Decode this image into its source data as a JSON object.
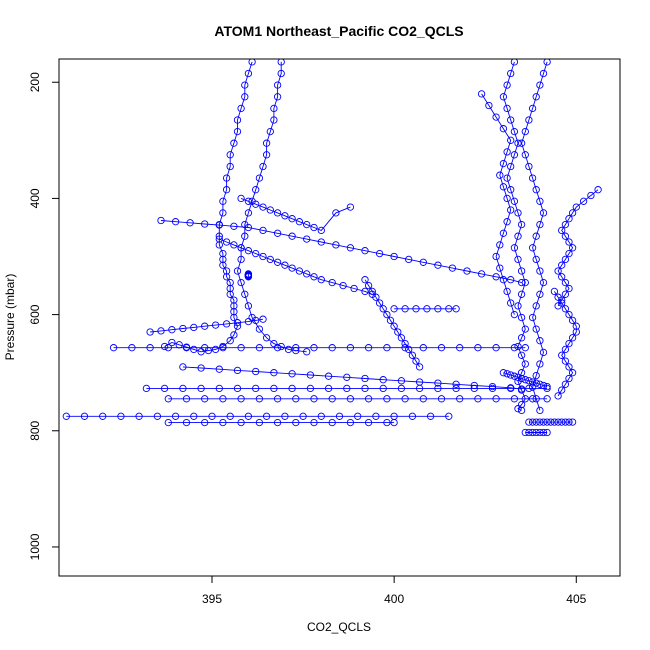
{
  "chart_data": {
    "type": "scatter",
    "title": "ATOM1 Northeast_Pacific CO2_QCLS",
    "xlabel": "CO2_QCLS",
    "ylabel": "Pressure (mbar)",
    "xlim": [
      390.8,
      406.2
    ],
    "ylim": [
      1050,
      160
    ],
    "y_reversed": true,
    "x_ticks": [
      395,
      400,
      405
    ],
    "y_ticks": [
      200,
      400,
      600,
      800,
      1000
    ],
    "x_tick_labels": [
      "395",
      "400",
      "405"
    ],
    "y_tick_labels": [
      "200",
      "400",
      "600",
      "800",
      "1000"
    ],
    "grid": false,
    "legend": "none",
    "marker": "open-circle",
    "connect_points": true,
    "color": "#0000ff",
    "series": [
      {
        "x": [
          396.1,
          396.0,
          395.9,
          395.9,
          395.8,
          395.7,
          395.7,
          395.6,
          395.5,
          395.5,
          395.4,
          395.4,
          395.3,
          395.3,
          395.2,
          395.2,
          395.2,
          395.3,
          395.3,
          395.3,
          395.4,
          395.4,
          395.5,
          395.5,
          395.5,
          395.6,
          395.6,
          395.6,
          395.6,
          395.7,
          395.6,
          395.5,
          395.3,
          395.1,
          394.9,
          394.7,
          394.5,
          394.3,
          394.1,
          393.9,
          393.7
        ],
        "y": [
          165,
          185,
          205,
          225,
          245,
          265,
          285,
          305,
          325,
          345,
          365,
          385,
          405,
          425,
          445,
          465,
          480,
          495,
          505,
          515,
          525,
          535,
          545,
          555,
          565,
          575,
          585,
          595,
          605,
          620,
          635,
          645,
          655,
          660,
          662,
          664,
          660,
          656,
          652,
          648,
          655
        ]
      },
      {
        "x": [
          396.9,
          396.9,
          396.8,
          396.8,
          396.7,
          396.7,
          396.6,
          396.5,
          396.5,
          396.4,
          396.3,
          396.2,
          396.1,
          396.0,
          395.9,
          395.9,
          395.8,
          395.8,
          395.7,
          395.8,
          395.9,
          396.0,
          396.1,
          396.3,
          396.5,
          396.7,
          396.9,
          397.1,
          397.3,
          397.6
        ],
        "y": [
          165,
          185,
          205,
          225,
          245,
          265,
          285,
          305,
          325,
          345,
          365,
          385,
          405,
          425,
          445,
          465,
          485,
          505,
          525,
          545,
          565,
          585,
          605,
          625,
          640,
          650,
          655,
          660,
          662,
          664
        ]
      },
      {
        "x": [
          393.6,
          394.0,
          394.4,
          394.8,
          395.2,
          395.6,
          396.0,
          396.4,
          396.8,
          397.2,
          397.6,
          398.0,
          398.4,
          398.8,
          399.2,
          399.6,
          400.0,
          400.4,
          400.8,
          401.2,
          401.6,
          402.0,
          402.4,
          402.8,
          403.2,
          403.5
        ],
        "y": [
          438,
          440,
          442,
          444,
          446,
          448,
          450,
          455,
          460,
          465,
          470,
          475,
          480,
          485,
          490,
          495,
          500,
          505,
          510,
          515,
          520,
          525,
          530,
          535,
          540,
          545
        ]
      },
      {
        "x": [
          392.3,
          392.8,
          393.3,
          393.8,
          394.3,
          394.8,
          395.3,
          395.8,
          396.3,
          396.8,
          397.3,
          397.8,
          398.3,
          398.8,
          399.3,
          399.8,
          400.3,
          400.8,
          401.3,
          401.8,
          402.3,
          402.8,
          403.3,
          403.6
        ],
        "y": [
          657,
          657,
          657,
          657,
          657,
          657,
          657,
          657,
          657,
          657,
          657,
          657,
          657,
          657,
          657,
          657,
          657,
          657,
          657,
          657,
          657,
          657,
          657,
          657
        ]
      },
      {
        "x": [
          393.2,
          393.7,
          394.2,
          394.7,
          395.2,
          395.7,
          396.2,
          396.7,
          397.2,
          397.7,
          398.2,
          398.7,
          399.2,
          399.7,
          400.2,
          400.7,
          401.2,
          401.7,
          402.2,
          402.7,
          403.2,
          403.7,
          404.2
        ],
        "y": [
          727,
          727,
          727,
          727,
          727,
          727,
          727,
          727,
          727,
          727,
          727,
          727,
          727,
          727,
          727,
          727,
          727,
          727,
          727,
          727,
          727,
          727,
          727
        ]
      },
      {
        "x": [
          393.8,
          394.3,
          394.8,
          395.3,
          395.8,
          396.3,
          396.8,
          397.3,
          397.8,
          398.3,
          398.8,
          399.3,
          399.8,
          400.3,
          400.8,
          401.3,
          401.8,
          402.3,
          402.8,
          403.3,
          403.8,
          404.2
        ],
        "y": [
          745,
          745,
          745,
          745,
          745,
          745,
          745,
          745,
          745,
          745,
          745,
          745,
          745,
          745,
          745,
          745,
          745,
          745,
          745,
          745,
          745,
          745
        ]
      },
      {
        "x": [
          391.0,
          391.5,
          392.0,
          392.5,
          393.0,
          393.5,
          394.0,
          394.5,
          395.0,
          395.5,
          396.0,
          396.5,
          397.0,
          397.5,
          398.0,
          398.5,
          399.0,
          399.5,
          400.0,
          400.5,
          401.0,
          401.5
        ],
        "y": [
          775,
          775,
          775,
          775,
          775,
          775,
          775,
          775,
          775,
          775,
          775,
          775,
          775,
          775,
          775,
          775,
          775,
          775,
          775,
          775,
          775,
          775
        ]
      },
      {
        "x": [
          393.8,
          394.3,
          394.8,
          395.3,
          395.8,
          396.3,
          396.8,
          397.3,
          397.8,
          398.3,
          398.8,
          399.3,
          399.8,
          400.0
        ],
        "y": [
          786,
          786,
          786,
          786,
          786,
          786,
          786,
          786,
          786,
          786,
          786,
          786,
          786,
          786
        ]
      },
      {
        "x": [
          394.2,
          394.7,
          395.2,
          395.7,
          396.2,
          396.7,
          397.2,
          397.7,
          398.2,
          398.7,
          399.2,
          399.7,
          400.2,
          400.7,
          401.2,
          401.7,
          402.2,
          402.7,
          403.2,
          403.5
        ],
        "y": [
          690,
          692,
          694,
          696,
          698,
          700,
          702,
          704,
          706,
          708,
          710,
          712,
          714,
          716,
          718,
          720,
          722,
          724,
          726,
          728
        ]
      },
      {
        "x": [
          400.0,
          400.3,
          400.6,
          400.9,
          401.2,
          401.5,
          401.7
        ],
        "y": [
          590,
          590,
          590,
          590,
          590,
          590,
          590
        ]
      },
      {
        "x": [
          399.2,
          399.3,
          399.4,
          399.5,
          399.6,
          399.7,
          399.8,
          399.9,
          400.0,
          400.1,
          400.2,
          400.3,
          400.4,
          400.5,
          400.6,
          400.7
        ],
        "y": [
          540,
          550,
          560,
          570,
          580,
          590,
          600,
          610,
          620,
          630,
          640,
          650,
          660,
          670,
          680,
          690
        ]
      },
      {
        "x": [
          395.2,
          395.4,
          395.6,
          395.8,
          396.0,
          396.2,
          396.4,
          396.6,
          396.8,
          397.0,
          397.2,
          397.4,
          397.6,
          397.8,
          398.0,
          398.3,
          398.6,
          398.9,
          399.2,
          399.4
        ],
        "y": [
          470,
          475,
          480,
          485,
          490,
          495,
          500,
          505,
          510,
          515,
          520,
          525,
          530,
          535,
          540,
          545,
          550,
          555,
          560,
          565
        ]
      },
      {
        "x": [
          393.3,
          393.6,
          393.9,
          394.2,
          394.5,
          394.8,
          395.1,
          395.4,
          395.7,
          396.0,
          396.2,
          396.4
        ],
        "y": [
          630,
          628,
          626,
          624,
          622,
          620,
          618,
          616,
          614,
          612,
          610,
          608
        ]
      },
      {
        "x": [
          395.8,
          396.0,
          396.2,
          396.4,
          396.6,
          396.8,
          397.0,
          397.2,
          397.4,
          397.6,
          397.8,
          398.0,
          398.4,
          398.8
        ],
        "y": [
          400,
          405,
          410,
          415,
          420,
          425,
          430,
          435,
          440,
          445,
          450,
          455,
          425,
          415
        ]
      },
      {
        "x": [
          396.0,
          396.0,
          396.0,
          396.0,
          396.0,
          396.0,
          396.0,
          396.0,
          396.0,
          396.0
        ],
        "y": [
          530,
          531,
          532,
          533,
          534,
          535,
          534,
          533,
          532,
          531
        ]
      },
      {
        "x": [
          403.3,
          403.2,
          403.1,
          403.0,
          403.1,
          403.2,
          403.3,
          403.4,
          403.3,
          403.2,
          403.1,
          403.2,
          403.3,
          403.4,
          403.5,
          403.4,
          403.3,
          403.4,
          403.5,
          403.6,
          403.5,
          403.4,
          403.5,
          403.6,
          403.5,
          403.4,
          403.5,
          403.6,
          403.5,
          403.4,
          403.5,
          403.6,
          403.5,
          403.4,
          403.5
        ],
        "y": [
          165,
          185,
          205,
          225,
          245,
          265,
          285,
          305,
          325,
          345,
          365,
          385,
          405,
          425,
          445,
          465,
          485,
          505,
          525,
          545,
          565,
          585,
          605,
          625,
          640,
          655,
          670,
          685,
          700,
          715,
          730,
          745,
          755,
          762,
          765
        ]
      },
      {
        "x": [
          404.2,
          404.1,
          404.0,
          403.9,
          403.8,
          403.7,
          403.6,
          403.5,
          403.6,
          403.7,
          403.8,
          403.9,
          404.0,
          404.1,
          404.0,
          403.9,
          403.8,
          403.9,
          404.0,
          404.1,
          404.0,
          403.9,
          403.8,
          403.9,
          404.0,
          404.1,
          404.0,
          403.9,
          403.8,
          403.9,
          404.0
        ],
        "y": [
          165,
          185,
          205,
          225,
          245,
          265,
          285,
          305,
          325,
          345,
          365,
          385,
          405,
          425,
          445,
          465,
          485,
          505,
          525,
          545,
          565,
          585,
          605,
          625,
          645,
          665,
          685,
          705,
          725,
          745,
          765
        ]
      },
      {
        "x": [
          402.4,
          402.6,
          402.8,
          403.0,
          403.2,
          403.1,
          403.0,
          402.9,
          403.0,
          403.1,
          403.2,
          403.1,
          403.0,
          402.9,
          402.8,
          402.9,
          403.0,
          403.1,
          403.2,
          403.3
        ],
        "y": [
          220,
          240,
          260,
          280,
          300,
          320,
          340,
          360,
          380,
          400,
          420,
          440,
          460,
          480,
          500,
          520,
          540,
          560,
          580,
          600
        ]
      },
      {
        "x": [
          405.6,
          405.4,
          405.2,
          405.0,
          404.9,
          404.8,
          404.7,
          404.6,
          404.7,
          404.8,
          404.9,
          404.8,
          404.7,
          404.6,
          404.5,
          404.6,
          404.7,
          404.8,
          404.7,
          404.6,
          404.5
        ],
        "y": [
          385,
          395,
          405,
          415,
          425,
          435,
          445,
          455,
          465,
          475,
          485,
          495,
          505,
          515,
          525,
          535,
          545,
          555,
          565,
          575,
          585
        ]
      },
      {
        "x": [
          404.4,
          404.5,
          404.6,
          404.7,
          404.8,
          404.9,
          405.0,
          405.0,
          404.9,
          404.8,
          404.7,
          404.6,
          404.7,
          404.8,
          404.9,
          404.8,
          404.7,
          404.6,
          404.5
        ],
        "y": [
          560,
          570,
          580,
          590,
          600,
          610,
          620,
          630,
          640,
          650,
          660,
          670,
          680,
          690,
          700,
          710,
          720,
          730,
          740
        ]
      },
      {
        "x": [
          403.7,
          403.8,
          403.9,
          404.0,
          404.1,
          404.2,
          404.3,
          404.4,
          404.5,
          404.6,
          404.7,
          404.8,
          404.9
        ],
        "y": [
          785,
          785,
          785,
          785,
          785,
          785,
          785,
          785,
          785,
          785,
          785,
          785,
          785
        ]
      },
      {
        "x": [
          403.6,
          403.7,
          403.8,
          403.9,
          404.0,
          404.1,
          404.2
        ],
        "y": [
          803,
          803,
          803,
          803,
          803,
          803,
          803
        ]
      },
      {
        "x": [
          403.0,
          403.1,
          403.2,
          403.3,
          403.4,
          403.5,
          403.6,
          403.7,
          403.8,
          403.9,
          404.0,
          404.1,
          404.2
        ],
        "y": [
          700,
          702,
          704,
          706,
          708,
          710,
          712,
          714,
          716,
          718,
          720,
          722,
          724
        ]
      }
    ]
  }
}
